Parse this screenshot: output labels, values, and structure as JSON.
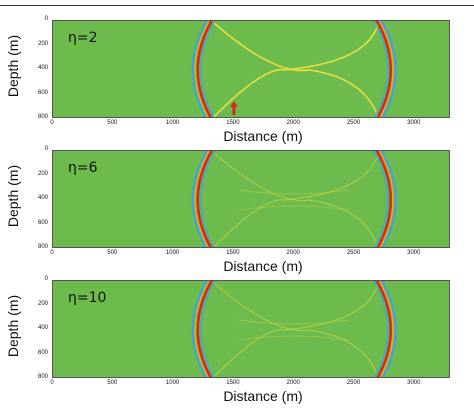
{
  "panels": [
    {
      "eta_label": "η=2",
      "xlabel": "Distance (m)",
      "ylabel": "Depth (m)",
      "arrow": true,
      "eta": 2,
      "reflection_strength": 1.0
    },
    {
      "eta_label": "η=6",
      "xlabel": "Distance (m)",
      "ylabel": "Depth (m)",
      "arrow": false,
      "eta": 6,
      "reflection_strength": 0.25
    },
    {
      "eta_label": "η=10",
      "xlabel": "Distance (m)",
      "ylabel": "Depth (m)",
      "arrow": false,
      "eta": 10,
      "reflection_strength": 0.2
    }
  ],
  "axes": {
    "x_ticks": [
      "0",
      "500",
      "1000",
      "1500",
      "2000",
      "2500",
      "3000"
    ],
    "x_tick_values": [
      0,
      500,
      1000,
      1500,
      2000,
      2500,
      3000
    ],
    "xlim": [
      0,
      3300
    ],
    "y_ticks": [
      "0",
      "200",
      "400",
      "600",
      "800"
    ],
    "y_tick_values": [
      0,
      200,
      400,
      600,
      800
    ],
    "ylim": [
      0,
      800
    ]
  },
  "colors": {
    "background": "#6dbb4c",
    "wave_red": "#d42a1a",
    "wave_orange": "#f0a020",
    "wave_blue": "#35a8e0",
    "reflection": "#e8e040",
    "arrow": "#d42a1a"
  },
  "wavefront": {
    "left_x": 1200,
    "right_x": 2800,
    "reflection_cross_depth": 400
  }
}
